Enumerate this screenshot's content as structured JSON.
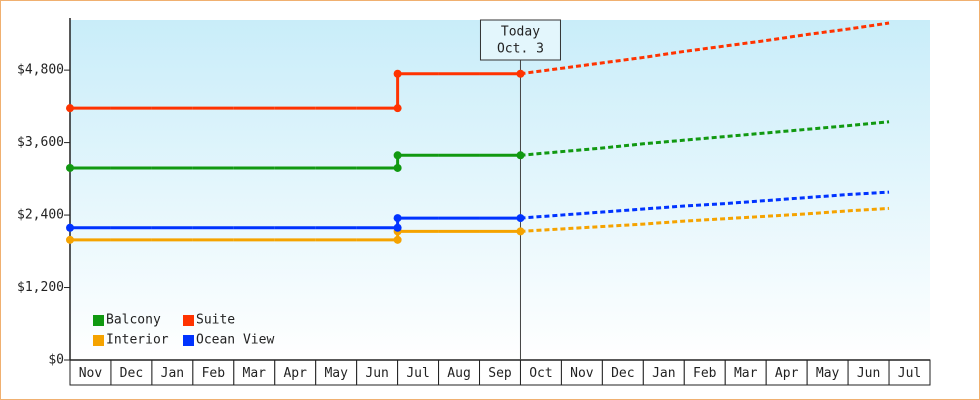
{
  "chart_data": {
    "type": "line",
    "step": true,
    "legend": "lower left",
    "categories": [
      "Nov",
      "Dec",
      "Jan",
      "Feb",
      "Mar",
      "Apr",
      "May",
      "Jun",
      "Jul",
      "Aug",
      "Sep",
      "Oct",
      "Nov",
      "Dec",
      "Jan",
      "Feb",
      "Mar",
      "Apr",
      "May",
      "Jun",
      "Jul"
    ],
    "series": [
      {
        "name": "Balcony",
        "color": "#119911",
        "values": [
          3180,
          3180,
          3180,
          3180,
          3180,
          3180,
          3180,
          3180,
          3390,
          3390,
          3390,
          3390,
          null,
          null,
          null,
          null,
          null,
          null,
          null,
          null,
          null
        ],
        "forecast": [
          null,
          null,
          null,
          null,
          null,
          null,
          null,
          null,
          null,
          null,
          null,
          3390,
          3450,
          3510,
          3580,
          3640,
          3700,
          3760,
          3820,
          3880,
          3945
        ]
      },
      {
        "name": "Suite",
        "color": "#ff3300",
        "values": [
          4170,
          4170,
          4170,
          4170,
          4170,
          4170,
          4170,
          4170,
          4740,
          4740,
          4740,
          4740,
          null,
          null,
          null,
          null,
          null,
          null,
          null,
          null,
          null
        ],
        "forecast": [
          null,
          null,
          null,
          null,
          null,
          null,
          null,
          null,
          null,
          null,
          null,
          4740,
          4830,
          4920,
          5010,
          5110,
          5200,
          5290,
          5390,
          5480,
          5580
        ]
      },
      {
        "name": "Interior",
        "color": "#f5a300",
        "values": [
          1990,
          1990,
          1990,
          1990,
          1990,
          1990,
          1990,
          1990,
          2130,
          2130,
          2130,
          2130,
          null,
          null,
          null,
          null,
          null,
          null,
          null,
          null,
          null
        ],
        "forecast": [
          null,
          null,
          null,
          null,
          null,
          null,
          null,
          null,
          null,
          null,
          null,
          2130,
          2170,
          2210,
          2250,
          2300,
          2340,
          2380,
          2420,
          2470,
          2510
        ]
      },
      {
        "name": "Ocean View",
        "color": "#0033ff",
        "values": [
          2190,
          2190,
          2190,
          2190,
          2190,
          2190,
          2190,
          2190,
          2350,
          2350,
          2350,
          2350,
          null,
          null,
          null,
          null,
          null,
          null,
          null,
          null,
          null
        ],
        "forecast": [
          null,
          null,
          null,
          null,
          null,
          null,
          null,
          null,
          null,
          null,
          null,
          2350,
          2400,
          2450,
          2500,
          2550,
          2590,
          2640,
          2690,
          2740,
          2780
        ]
      }
    ],
    "ylim": [
      0,
      5630
    ],
    "yticks": [
      {
        "value": 0,
        "label": "$0"
      },
      {
        "value": 1200,
        "label": "$1,200"
      },
      {
        "value": 2400,
        "label": "$2,400"
      },
      {
        "value": 3600,
        "label": "$3,600"
      },
      {
        "value": 4800,
        "label": "$4,800"
      }
    ],
    "annotation": {
      "lines": [
        "Today",
        "Oct. 3"
      ],
      "x": "Oct"
    }
  }
}
